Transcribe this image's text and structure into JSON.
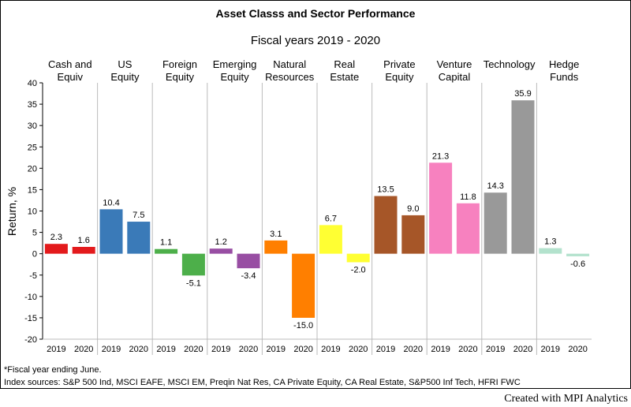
{
  "chart_data": {
    "type": "bar",
    "title": "Asset Classs and Sector Performance",
    "subtitle": "Fiscal years 2019 - 2020",
    "ylabel": "Return, %",
    "ylim": [
      -20,
      40
    ],
    "yticks": [
      40,
      35,
      30,
      25,
      20,
      15,
      10,
      5,
      0,
      -5,
      -10,
      -15,
      -20
    ],
    "grid": false,
    "periods": [
      "2019",
      "2020"
    ],
    "groups": [
      {
        "label_lines": [
          "Cash and",
          "Equiv"
        ],
        "color": "#e31a1c",
        "values": [
          2.3,
          1.6
        ],
        "value_labels": [
          "2.3",
          "1.6"
        ]
      },
      {
        "label_lines": [
          "US",
          "Equity"
        ],
        "color": "#3a7ab8",
        "values": [
          10.4,
          7.5
        ],
        "value_labels": [
          "10.4",
          "7.5"
        ]
      },
      {
        "label_lines": [
          "Foreign",
          "Equity"
        ],
        "color": "#4daf4a",
        "values": [
          1.1,
          -5.1
        ],
        "value_labels": [
          "1.1",
          "-5.1"
        ]
      },
      {
        "label_lines": [
          "Emerging",
          "Equity"
        ],
        "color": "#984ea3",
        "values": [
          1.2,
          -3.4
        ],
        "value_labels": [
          "1.2",
          "-3.4"
        ]
      },
      {
        "label_lines": [
          "Natural",
          "Resources"
        ],
        "color": "#ff7f00",
        "values": [
          3.1,
          -15.0
        ],
        "value_labels": [
          "3.1",
          "-15.0"
        ]
      },
      {
        "label_lines": [
          "Real",
          "Estate"
        ],
        "color": "#ffff33",
        "values": [
          6.7,
          -2.0
        ],
        "value_labels": [
          "6.7",
          "-2.0"
        ]
      },
      {
        "label_lines": [
          "Private",
          "Equity"
        ],
        "color": "#a65628",
        "values": [
          13.5,
          9.0
        ],
        "value_labels": [
          "13.5",
          "9.0"
        ]
      },
      {
        "label_lines": [
          "Venture",
          "Capital"
        ],
        "color": "#f781bf",
        "values": [
          21.3,
          11.8
        ],
        "value_labels": [
          "21.3",
          "11.8"
        ]
      },
      {
        "label_lines": [
          "Technology"
        ],
        "color": "#999999",
        "values": [
          14.3,
          35.9
        ],
        "value_labels": [
          "14.3",
          "35.9"
        ]
      },
      {
        "label_lines": [
          "Hedge",
          "Funds"
        ],
        "color": "#b3e2cd",
        "values": [
          1.3,
          -0.6
        ],
        "value_labels": [
          "1.3",
          "-0.6"
        ]
      }
    ],
    "footnotes": [
      "*Fiscal year ending June.",
      "Index sources: S&P 500 Ind, MSCI EAFE, MSCI EM, Preqin Nat Res, CA Private Equity, CA Real Estate, S&P500 Inf Tech, HFRI FWC"
    ]
  },
  "credit": "Created with MPI Analytics"
}
